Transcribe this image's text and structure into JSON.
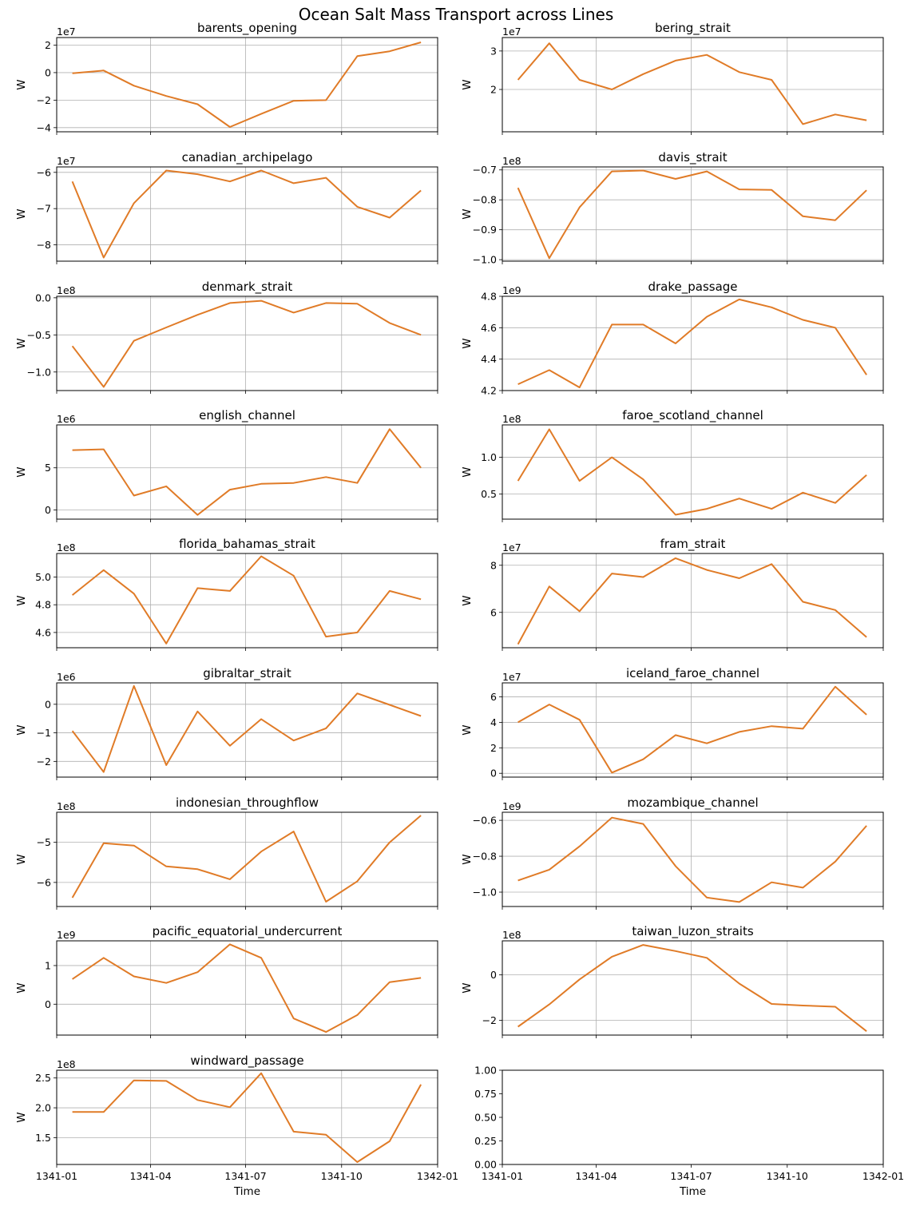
{
  "figure": {
    "title": "Ocean Salt Mass Transport across Lines",
    "line_color": "#e07b27",
    "grid_color": "#b0b0b0"
  },
  "chart_data": [
    {
      "type": "line",
      "title": "barents_opening",
      "ylabel": "W",
      "xlabel": "",
      "offset_text": "1e7",
      "x": [
        "1341-01-16",
        "1341-02-15",
        "1341-03-16",
        "1341-04-16",
        "1341-05-16",
        "1341-06-16",
        "1341-07-16",
        "1341-08-16",
        "1341-09-16",
        "1341-10-16",
        "1341-11-16",
        "1341-12-16"
      ],
      "values": [
        -0.05,
        0.15,
        -0.95,
        -1.7,
        -2.3,
        -3.95,
        -3.0,
        -2.05,
        -2.0,
        1.2,
        1.55,
        2.2
      ],
      "ylim": [
        -4.3,
        2.55
      ],
      "yticks": [
        -4,
        -2,
        0,
        2
      ],
      "ytick_labels": [
        "−4",
        "−2",
        "0",
        "2"
      ],
      "xlim": [
        "1341-01-01",
        "1342-01-01"
      ],
      "xticks": [
        "1341-01",
        "1341-04",
        "1341-07",
        "1341-10",
        "1342-01"
      ],
      "show_xtick_labels": false,
      "grid": true
    },
    {
      "type": "line",
      "title": "bering_strait",
      "ylabel": "W",
      "xlabel": "",
      "offset_text": "1e7",
      "x": [
        "1341-01-16",
        "1341-02-15",
        "1341-03-16",
        "1341-04-16",
        "1341-05-16",
        "1341-06-16",
        "1341-07-16",
        "1341-08-16",
        "1341-09-16",
        "1341-10-16",
        "1341-11-16",
        "1341-12-16"
      ],
      "values": [
        2.25,
        3.2,
        2.25,
        2.0,
        2.4,
        2.75,
        2.9,
        2.45,
        2.25,
        1.1,
        1.35,
        1.2
      ],
      "ylim": [
        0.9,
        3.35
      ],
      "yticks": [
        2,
        3
      ],
      "ytick_labels": [
        "2",
        "3"
      ],
      "xlim": [
        "1341-01-01",
        "1342-01-01"
      ],
      "xticks": [
        "1341-01",
        "1341-04",
        "1341-07",
        "1341-10",
        "1342-01"
      ],
      "show_xtick_labels": false,
      "grid": true
    },
    {
      "type": "line",
      "title": "canadian_archipelago",
      "ylabel": "W",
      "xlabel": "",
      "offset_text": "1e7",
      "x": [
        "1341-01-16",
        "1341-02-15",
        "1341-03-16",
        "1341-04-16",
        "1341-05-16",
        "1341-06-16",
        "1341-07-16",
        "1341-08-16",
        "1341-09-16",
        "1341-10-16",
        "1341-11-16",
        "1341-12-16"
      ],
      "values": [
        -6.25,
        -8.35,
        -6.85,
        -5.95,
        -6.05,
        -6.25,
        -5.95,
        -6.3,
        -6.15,
        -6.95,
        -7.25,
        -6.5
      ],
      "ylim": [
        -8.45,
        -5.85
      ],
      "yticks": [
        -8,
        -7,
        -6
      ],
      "ytick_labels": [
        "−8",
        "−7",
        "−6"
      ],
      "xlim": [
        "1341-01-01",
        "1342-01-01"
      ],
      "xticks": [
        "1341-01",
        "1341-04",
        "1341-07",
        "1341-10",
        "1342-01"
      ],
      "show_xtick_labels": false,
      "grid": true
    },
    {
      "type": "line",
      "title": "davis_strait",
      "ylabel": "W",
      "xlabel": "",
      "offset_text": "1e8",
      "x": [
        "1341-01-16",
        "1341-02-15",
        "1341-03-16",
        "1341-04-16",
        "1341-05-16",
        "1341-06-16",
        "1341-07-16",
        "1341-08-16",
        "1341-09-16",
        "1341-10-16",
        "1341-11-16",
        "1341-12-16"
      ],
      "values": [
        -0.76,
        -0.995,
        -0.825,
        -0.705,
        -0.702,
        -0.73,
        -0.705,
        -0.765,
        -0.767,
        -0.855,
        -0.868,
        -0.768
      ],
      "ylim": [
        -1.005,
        -0.69
      ],
      "yticks": [
        -1.0,
        -0.9,
        -0.8,
        -0.7
      ],
      "ytick_labels": [
        "−1.0",
        "−0.9",
        "−0.8",
        "−0.7"
      ],
      "xlim": [
        "1341-01-01",
        "1342-01-01"
      ],
      "xticks": [
        "1341-01",
        "1341-04",
        "1341-07",
        "1341-10",
        "1342-01"
      ],
      "show_xtick_labels": false,
      "grid": true
    },
    {
      "type": "line",
      "title": "denmark_strait",
      "ylabel": "W",
      "xlabel": "",
      "offset_text": "1e8",
      "x": [
        "1341-01-16",
        "1341-02-15",
        "1341-03-16",
        "1341-04-16",
        "1341-05-16",
        "1341-06-16",
        "1341-07-16",
        "1341-08-16",
        "1341-09-16",
        "1341-10-16",
        "1341-11-16",
        "1341-12-16"
      ],
      "values": [
        -0.65,
        -1.2,
        -0.58,
        -0.4,
        -0.23,
        -0.07,
        -0.04,
        -0.2,
        -0.07,
        -0.08,
        -0.34,
        -0.5
      ],
      "ylim": [
        -1.25,
        0.02
      ],
      "yticks": [
        -1.0,
        -0.5,
        0.0
      ],
      "ytick_labels": [
        "−1.0",
        "−0.5",
        "0.0"
      ],
      "xlim": [
        "1341-01-01",
        "1342-01-01"
      ],
      "xticks": [
        "1341-01",
        "1341-04",
        "1341-07",
        "1341-10",
        "1342-01"
      ],
      "show_xtick_labels": false,
      "grid": true
    },
    {
      "type": "line",
      "title": "drake_passage",
      "ylabel": "W",
      "xlabel": "",
      "offset_text": "1e9",
      "x": [
        "1341-01-16",
        "1341-02-15",
        "1341-03-16",
        "1341-04-16",
        "1341-05-16",
        "1341-06-16",
        "1341-07-16",
        "1341-08-16",
        "1341-09-16",
        "1341-10-16",
        "1341-11-16",
        "1341-12-16"
      ],
      "values": [
        4.24,
        4.33,
        4.22,
        4.62,
        4.62,
        4.5,
        4.67,
        4.78,
        4.73,
        4.65,
        4.6,
        4.3
      ],
      "ylim": [
        4.2,
        4.8
      ],
      "yticks": [
        4.2,
        4.4,
        4.6,
        4.8
      ],
      "ytick_labels": [
        "4.2",
        "4.4",
        "4.6",
        "4.8"
      ],
      "xlim": [
        "1341-01-01",
        "1342-01-01"
      ],
      "xticks": [
        "1341-01",
        "1341-04",
        "1341-07",
        "1341-10",
        "1342-01"
      ],
      "show_xtick_labels": false,
      "grid": true
    },
    {
      "type": "line",
      "title": "english_channel",
      "ylabel": "W",
      "xlabel": "",
      "offset_text": "1e6",
      "x": [
        "1341-01-16",
        "1341-02-15",
        "1341-03-16",
        "1341-04-16",
        "1341-05-16",
        "1341-06-16",
        "1341-07-16",
        "1341-08-16",
        "1341-09-16",
        "1341-10-16",
        "1341-11-16",
        "1341-12-16"
      ],
      "values": [
        7.1,
        7.2,
        1.7,
        2.8,
        -0.6,
        2.4,
        3.1,
        3.2,
        3.9,
        3.2,
        9.6,
        5.0
      ],
      "ylim": [
        -1.1,
        10.1
      ],
      "yticks": [
        0,
        5
      ],
      "ytick_labels": [
        "0",
        "5"
      ],
      "xlim": [
        "1341-01-01",
        "1342-01-01"
      ],
      "xticks": [
        "1341-01",
        "1341-04",
        "1341-07",
        "1341-10",
        "1342-01"
      ],
      "show_xtick_labels": false,
      "grid": true
    },
    {
      "type": "line",
      "title": "faroe_scotland_channel",
      "ylabel": "W",
      "xlabel": "",
      "offset_text": "1e8",
      "x": [
        "1341-01-16",
        "1341-02-15",
        "1341-03-16",
        "1341-04-16",
        "1341-05-16",
        "1341-06-16",
        "1341-07-16",
        "1341-08-16",
        "1341-09-16",
        "1341-10-16",
        "1341-11-16",
        "1341-12-16"
      ],
      "values": [
        0.68,
        1.38,
        0.68,
        1.0,
        0.7,
        0.22,
        0.3,
        0.44,
        0.3,
        0.52,
        0.38,
        0.76
      ],
      "ylim": [
        0.16,
        1.44
      ],
      "yticks": [
        0.5,
        1.0
      ],
      "ytick_labels": [
        "0.5",
        "1.0"
      ],
      "xlim": [
        "1341-01-01",
        "1342-01-01"
      ],
      "xticks": [
        "1341-01",
        "1341-04",
        "1341-07",
        "1341-10",
        "1342-01"
      ],
      "show_xtick_labels": false,
      "grid": true
    },
    {
      "type": "line",
      "title": "florida_bahamas_strait",
      "ylabel": "W",
      "xlabel": "",
      "offset_text": "1e8",
      "x": [
        "1341-01-16",
        "1341-02-15",
        "1341-03-16",
        "1341-04-16",
        "1341-05-16",
        "1341-06-16",
        "1341-07-16",
        "1341-08-16",
        "1341-09-16",
        "1341-10-16",
        "1341-11-16",
        "1341-12-16"
      ],
      "values": [
        4.87,
        5.05,
        4.88,
        4.52,
        4.92,
        4.9,
        5.15,
        5.01,
        4.57,
        4.6,
        4.9,
        4.84
      ],
      "ylim": [
        4.49,
        5.17
      ],
      "yticks": [
        4.6,
        4.8,
        5.0
      ],
      "ytick_labels": [
        "4.6",
        "4.8",
        "5.0"
      ],
      "xlim": [
        "1341-01-01",
        "1342-01-01"
      ],
      "xticks": [
        "1341-01",
        "1341-04",
        "1341-07",
        "1341-10",
        "1342-01"
      ],
      "show_xtick_labels": false,
      "grid": true
    },
    {
      "type": "line",
      "title": "fram_strait",
      "ylabel": "W",
      "xlabel": "",
      "offset_text": "1e7",
      "x": [
        "1341-01-16",
        "1341-02-15",
        "1341-03-16",
        "1341-04-16",
        "1341-05-16",
        "1341-06-16",
        "1341-07-16",
        "1341-08-16",
        "1341-09-16",
        "1341-10-16",
        "1341-11-16",
        "1341-12-16"
      ],
      "values": [
        4.65,
        7.1,
        6.05,
        7.65,
        7.5,
        8.3,
        7.8,
        7.45,
        8.05,
        6.45,
        6.1,
        4.95
      ],
      "ylim": [
        4.5,
        8.5
      ],
      "yticks": [
        6,
        8
      ],
      "ytick_labels": [
        "6",
        "8"
      ],
      "xlim": [
        "1341-01-01",
        "1342-01-01"
      ],
      "xticks": [
        "1341-01",
        "1341-04",
        "1341-07",
        "1341-10",
        "1342-01"
      ],
      "show_xtick_labels": false,
      "grid": true
    },
    {
      "type": "line",
      "title": "gibraltar_strait",
      "ylabel": "W",
      "xlabel": "",
      "offset_text": "1e6",
      "x": [
        "1341-01-16",
        "1341-02-15",
        "1341-03-16",
        "1341-04-16",
        "1341-05-16",
        "1341-06-16",
        "1341-07-16",
        "1341-08-16",
        "1341-09-16",
        "1341-10-16",
        "1341-11-16",
        "1341-12-16"
      ],
      "values": [
        -0.93,
        -2.37,
        0.64,
        -2.13,
        -0.25,
        -1.45,
        -0.52,
        -1.27,
        -0.84,
        0.38,
        -0.02,
        -0.41
      ],
      "ylim": [
        -2.55,
        0.75
      ],
      "yticks": [
        -2,
        -1,
        0
      ],
      "ytick_labels": [
        "−2",
        "−1",
        "0"
      ],
      "xlim": [
        "1341-01-01",
        "1342-01-01"
      ],
      "xticks": [
        "1341-01",
        "1341-04",
        "1341-07",
        "1341-10",
        "1342-01"
      ],
      "show_xtick_labels": false,
      "grid": true
    },
    {
      "type": "line",
      "title": "iceland_faroe_channel",
      "ylabel": "W",
      "xlabel": "",
      "offset_text": "1e7",
      "x": [
        "1341-01-16",
        "1341-02-15",
        "1341-03-16",
        "1341-04-16",
        "1341-05-16",
        "1341-06-16",
        "1341-07-16",
        "1341-08-16",
        "1341-09-16",
        "1341-10-16",
        "1341-11-16",
        "1341-12-16"
      ],
      "values": [
        4.0,
        5.4,
        4.2,
        0.05,
        1.1,
        3.0,
        2.35,
        3.25,
        3.7,
        3.5,
        6.8,
        4.6
      ],
      "ylim": [
        -0.3,
        7.1
      ],
      "yticks": [
        0,
        2,
        4,
        6
      ],
      "ytick_labels": [
        "0",
        "2",
        "4",
        "6"
      ],
      "xlim": [
        "1341-01-01",
        "1342-01-01"
      ],
      "xticks": [
        "1341-01",
        "1341-04",
        "1341-07",
        "1341-10",
        "1342-01"
      ],
      "show_xtick_labels": false,
      "grid": true
    },
    {
      "type": "line",
      "title": "indonesian_throughflow",
      "ylabel": "W",
      "xlabel": "",
      "offset_text": "1e8",
      "x": [
        "1341-01-16",
        "1341-02-15",
        "1341-03-16",
        "1341-04-16",
        "1341-05-16",
        "1341-06-16",
        "1341-07-16",
        "1341-08-16",
        "1341-09-16",
        "1341-10-16",
        "1341-11-16",
        "1341-12-16"
      ],
      "values": [
        -6.38,
        -5.02,
        -5.08,
        -5.6,
        -5.67,
        -5.92,
        -5.23,
        -4.73,
        -6.48,
        -5.97,
        -5.0,
        -4.33
      ],
      "ylim": [
        -6.6,
        -4.25
      ],
      "yticks": [
        -6,
        -5
      ],
      "ytick_labels": [
        "−6",
        "−5"
      ],
      "xlim": [
        "1341-01-01",
        "1342-01-01"
      ],
      "xticks": [
        "1341-01",
        "1341-04",
        "1341-07",
        "1341-10",
        "1342-01"
      ],
      "show_xtick_labels": false,
      "grid": true
    },
    {
      "type": "line",
      "title": "mozambique_channel",
      "ylabel": "W",
      "xlabel": "",
      "offset_text": "1e9",
      "x": [
        "1341-01-16",
        "1341-02-15",
        "1341-03-16",
        "1341-04-16",
        "1341-05-16",
        "1341-06-16",
        "1341-07-16",
        "1341-08-16",
        "1341-09-16",
        "1341-10-16",
        "1341-11-16",
        "1341-12-16"
      ],
      "values": [
        -0.935,
        -0.875,
        -0.745,
        -0.585,
        -0.62,
        -0.855,
        -1.03,
        -1.055,
        -0.945,
        -0.975,
        -0.83,
        -0.63
      ],
      "ylim": [
        -1.08,
        -0.555
      ],
      "yticks": [
        -1.0,
        -0.8,
        -0.6
      ],
      "ytick_labels": [
        "−1.0",
        "−0.8",
        "−0.6"
      ],
      "xlim": [
        "1341-01-01",
        "1342-01-01"
      ],
      "xticks": [
        "1341-01",
        "1341-04",
        "1341-07",
        "1341-10",
        "1342-01"
      ],
      "show_xtick_labels": false,
      "grid": true
    },
    {
      "type": "line",
      "title": "pacific_equatorial_undercurrent",
      "ylabel": "W",
      "xlabel": "",
      "offset_text": "1e9",
      "x": [
        "1341-01-16",
        "1341-02-15",
        "1341-03-16",
        "1341-04-16",
        "1341-05-16",
        "1341-06-16",
        "1341-07-16",
        "1341-08-16",
        "1341-09-16",
        "1341-10-16",
        "1341-11-16",
        "1341-12-16"
      ],
      "values": [
        0.65,
        1.2,
        0.72,
        0.55,
        0.83,
        1.55,
        1.2,
        -0.37,
        -0.72,
        -0.28,
        0.57,
        0.68
      ],
      "ylim": [
        -0.8,
        1.64
      ],
      "yticks": [
        0,
        1
      ],
      "ytick_labels": [
        "0",
        "1"
      ],
      "xlim": [
        "1341-01-01",
        "1342-01-01"
      ],
      "xticks": [
        "1341-01",
        "1341-04",
        "1341-07",
        "1341-10",
        "1342-01"
      ],
      "show_xtick_labels": false,
      "grid": true
    },
    {
      "type": "line",
      "title": "taiwan_luzon_straits",
      "ylabel": "W",
      "xlabel": "",
      "offset_text": "1e8",
      "x": [
        "1341-01-16",
        "1341-02-15",
        "1341-03-16",
        "1341-04-16",
        "1341-05-16",
        "1341-06-16",
        "1341-07-16",
        "1341-08-16",
        "1341-09-16",
        "1341-10-16",
        "1341-11-16",
        "1341-12-16"
      ],
      "values": [
        -2.28,
        -1.3,
        -0.2,
        0.8,
        1.32,
        1.05,
        0.75,
        -0.38,
        -1.28,
        -1.35,
        -1.4,
        -2.48
      ],
      "ylim": [
        -2.65,
        1.5
      ],
      "yticks": [
        -2,
        0
      ],
      "ytick_labels": [
        "−2",
        "0"
      ],
      "xlim": [
        "1341-01-01",
        "1342-01-01"
      ],
      "xticks": [
        "1341-01",
        "1341-04",
        "1341-07",
        "1341-10",
        "1342-01"
      ],
      "show_xtick_labels": false,
      "grid": true
    },
    {
      "type": "line",
      "title": "windward_passage",
      "ylabel": "W",
      "xlabel": "Time",
      "offset_text": "1e8",
      "x": [
        "1341-01-16",
        "1341-02-15",
        "1341-03-16",
        "1341-04-16",
        "1341-05-16",
        "1341-06-16",
        "1341-07-16",
        "1341-08-16",
        "1341-09-16",
        "1341-10-16",
        "1341-11-16",
        "1341-12-16"
      ],
      "values": [
        1.93,
        1.93,
        2.46,
        2.45,
        2.13,
        2.01,
        2.58,
        1.6,
        1.55,
        1.09,
        1.44,
        2.39
      ],
      "ylim": [
        1.05,
        2.63
      ],
      "yticks": [
        1.5,
        2.0,
        2.5
      ],
      "ytick_labels": [
        "1.5",
        "2.0",
        "2.5"
      ],
      "xlim": [
        "1341-01-01",
        "1342-01-01"
      ],
      "xticks": [
        "1341-01",
        "1341-04",
        "1341-07",
        "1341-10",
        "1342-01"
      ],
      "xtick_labels": [
        "1341-01",
        "1341-04",
        "1341-07",
        "1341-10",
        "1342-01"
      ],
      "show_xtick_labels": true,
      "grid": true
    },
    {
      "type": "line",
      "title": "",
      "ylabel": "",
      "xlabel": "Time",
      "offset_text": "",
      "x": [],
      "values": [],
      "ylim": [
        0,
        1
      ],
      "yticks": [
        0,
        0.25,
        0.5,
        0.75,
        1.0
      ],
      "ytick_labels": [
        "0.00",
        "0.25",
        "0.50",
        "0.75",
        "1.00"
      ],
      "xlim": [
        "1341-01-01",
        "1342-01-01"
      ],
      "xticks": [
        "1341-01",
        "1341-04",
        "1341-07",
        "1341-10",
        "1342-01"
      ],
      "xtick_labels": [
        "1341-01",
        "1341-04",
        "1341-07",
        "1341-10",
        "1342-01"
      ],
      "show_xtick_labels": true,
      "grid": false
    }
  ]
}
